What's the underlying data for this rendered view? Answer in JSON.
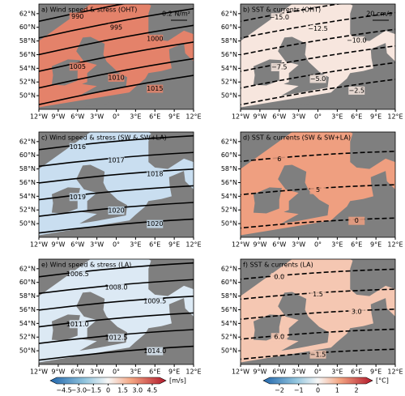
{
  "lat_labels": [
    "62°N",
    "60°N",
    "58°N",
    "56°N",
    "54°N",
    "52°N",
    "50°N"
  ],
  "lon_labels": [
    "12°W",
    "9°W",
    "6°W",
    "3°W",
    "0°",
    "3°E",
    "6°E",
    "9°E",
    "12°E"
  ],
  "panels": [
    {
      "title": "a) Wind speed & stress (OHT)",
      "scale_label": "0.2 N/m²",
      "contour_labels": [
        "990",
        "995",
        "1000",
        "1005",
        "1010",
        "1015"
      ]
    },
    {
      "title": "b) SST & currents (OHT)",
      "scale_label": "20 cm/s",
      "contour_labels": [
        "−15.0",
        "−12.5",
        "−10.0",
        "−7.5",
        "−5.0",
        "−2.5"
      ]
    },
    {
      "title": "c) Wind speed & stress (SW & SW+LA)",
      "contour_labels": [
        "1016",
        "1017",
        "1018",
        "1019",
        "1020",
        "1020"
      ]
    },
    {
      "title": "d) SST & currents (SW & SW+LA)",
      "contour_labels": [
        "6",
        "5",
        "0"
      ]
    },
    {
      "title": "e) Wind speed & stress (LA)",
      "contour_labels": [
        "1006.5",
        "1008.0",
        "1009.5",
        "1011.0",
        "1012.5",
        "1014.0"
      ]
    },
    {
      "title": "f) SST & currents (LA)",
      "contour_labels": [
        "0.0",
        "1.5",
        "3.0",
        "6.0",
        "−1.5"
      ]
    }
  ],
  "colorbars": [
    {
      "ticks": [
        "−4.5",
        "−3.0",
        "−1.5",
        "0",
        "1.5",
        "3.0",
        "4.5"
      ],
      "unit": "[m/s]"
    },
    {
      "ticks": [
        "−2",
        "−1",
        "0",
        "1",
        "2"
      ],
      "unit": "[°C]"
    }
  ]
}
